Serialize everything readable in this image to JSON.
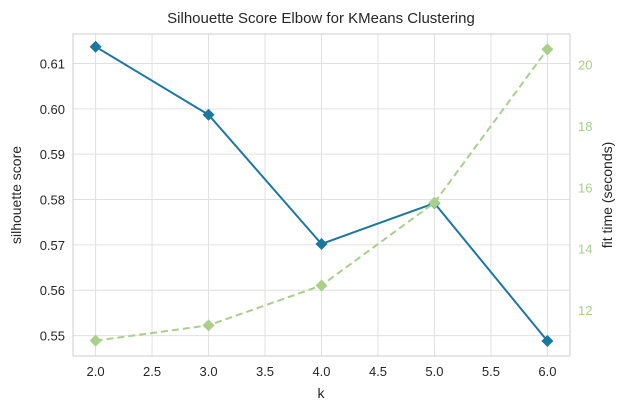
{
  "chart_data": {
    "type": "line",
    "title": "Silhouette Score Elbow for KMeans Clustering",
    "xlabel": "k",
    "ylabel": "silhouette score",
    "y2label": "fit time (seconds)",
    "x": [
      2.0,
      3.0,
      4.0,
      5.0,
      6.0
    ],
    "xlim": [
      1.8,
      6.2
    ],
    "xticks": [
      "2.0",
      "2.5",
      "3.0",
      "3.5",
      "4.0",
      "4.5",
      "5.0",
      "5.5",
      "6.0"
    ],
    "ylim": [
      0.5455,
      0.6165
    ],
    "yticks": [
      "0.55",
      "0.56",
      "0.57",
      "0.58",
      "0.59",
      "0.60",
      "0.61"
    ],
    "y2lim": [
      10.5,
      21.0
    ],
    "y2ticks": [
      "12",
      "14",
      "16",
      "18",
      "20"
    ],
    "grid": true,
    "series": [
      {
        "values": [
          0.6137,
          0.5987,
          0.5702,
          0.5792,
          0.5488
        ],
        "axis": "left",
        "color": "#1a77a0",
        "style": "solid",
        "marker": "diamond"
      },
      {
        "values": [
          11.0,
          11.5,
          12.8,
          15.5,
          20.5
        ],
        "axis": "right",
        "color": "#a9cf8b",
        "style": "dashed",
        "marker": "diamond"
      }
    ]
  }
}
